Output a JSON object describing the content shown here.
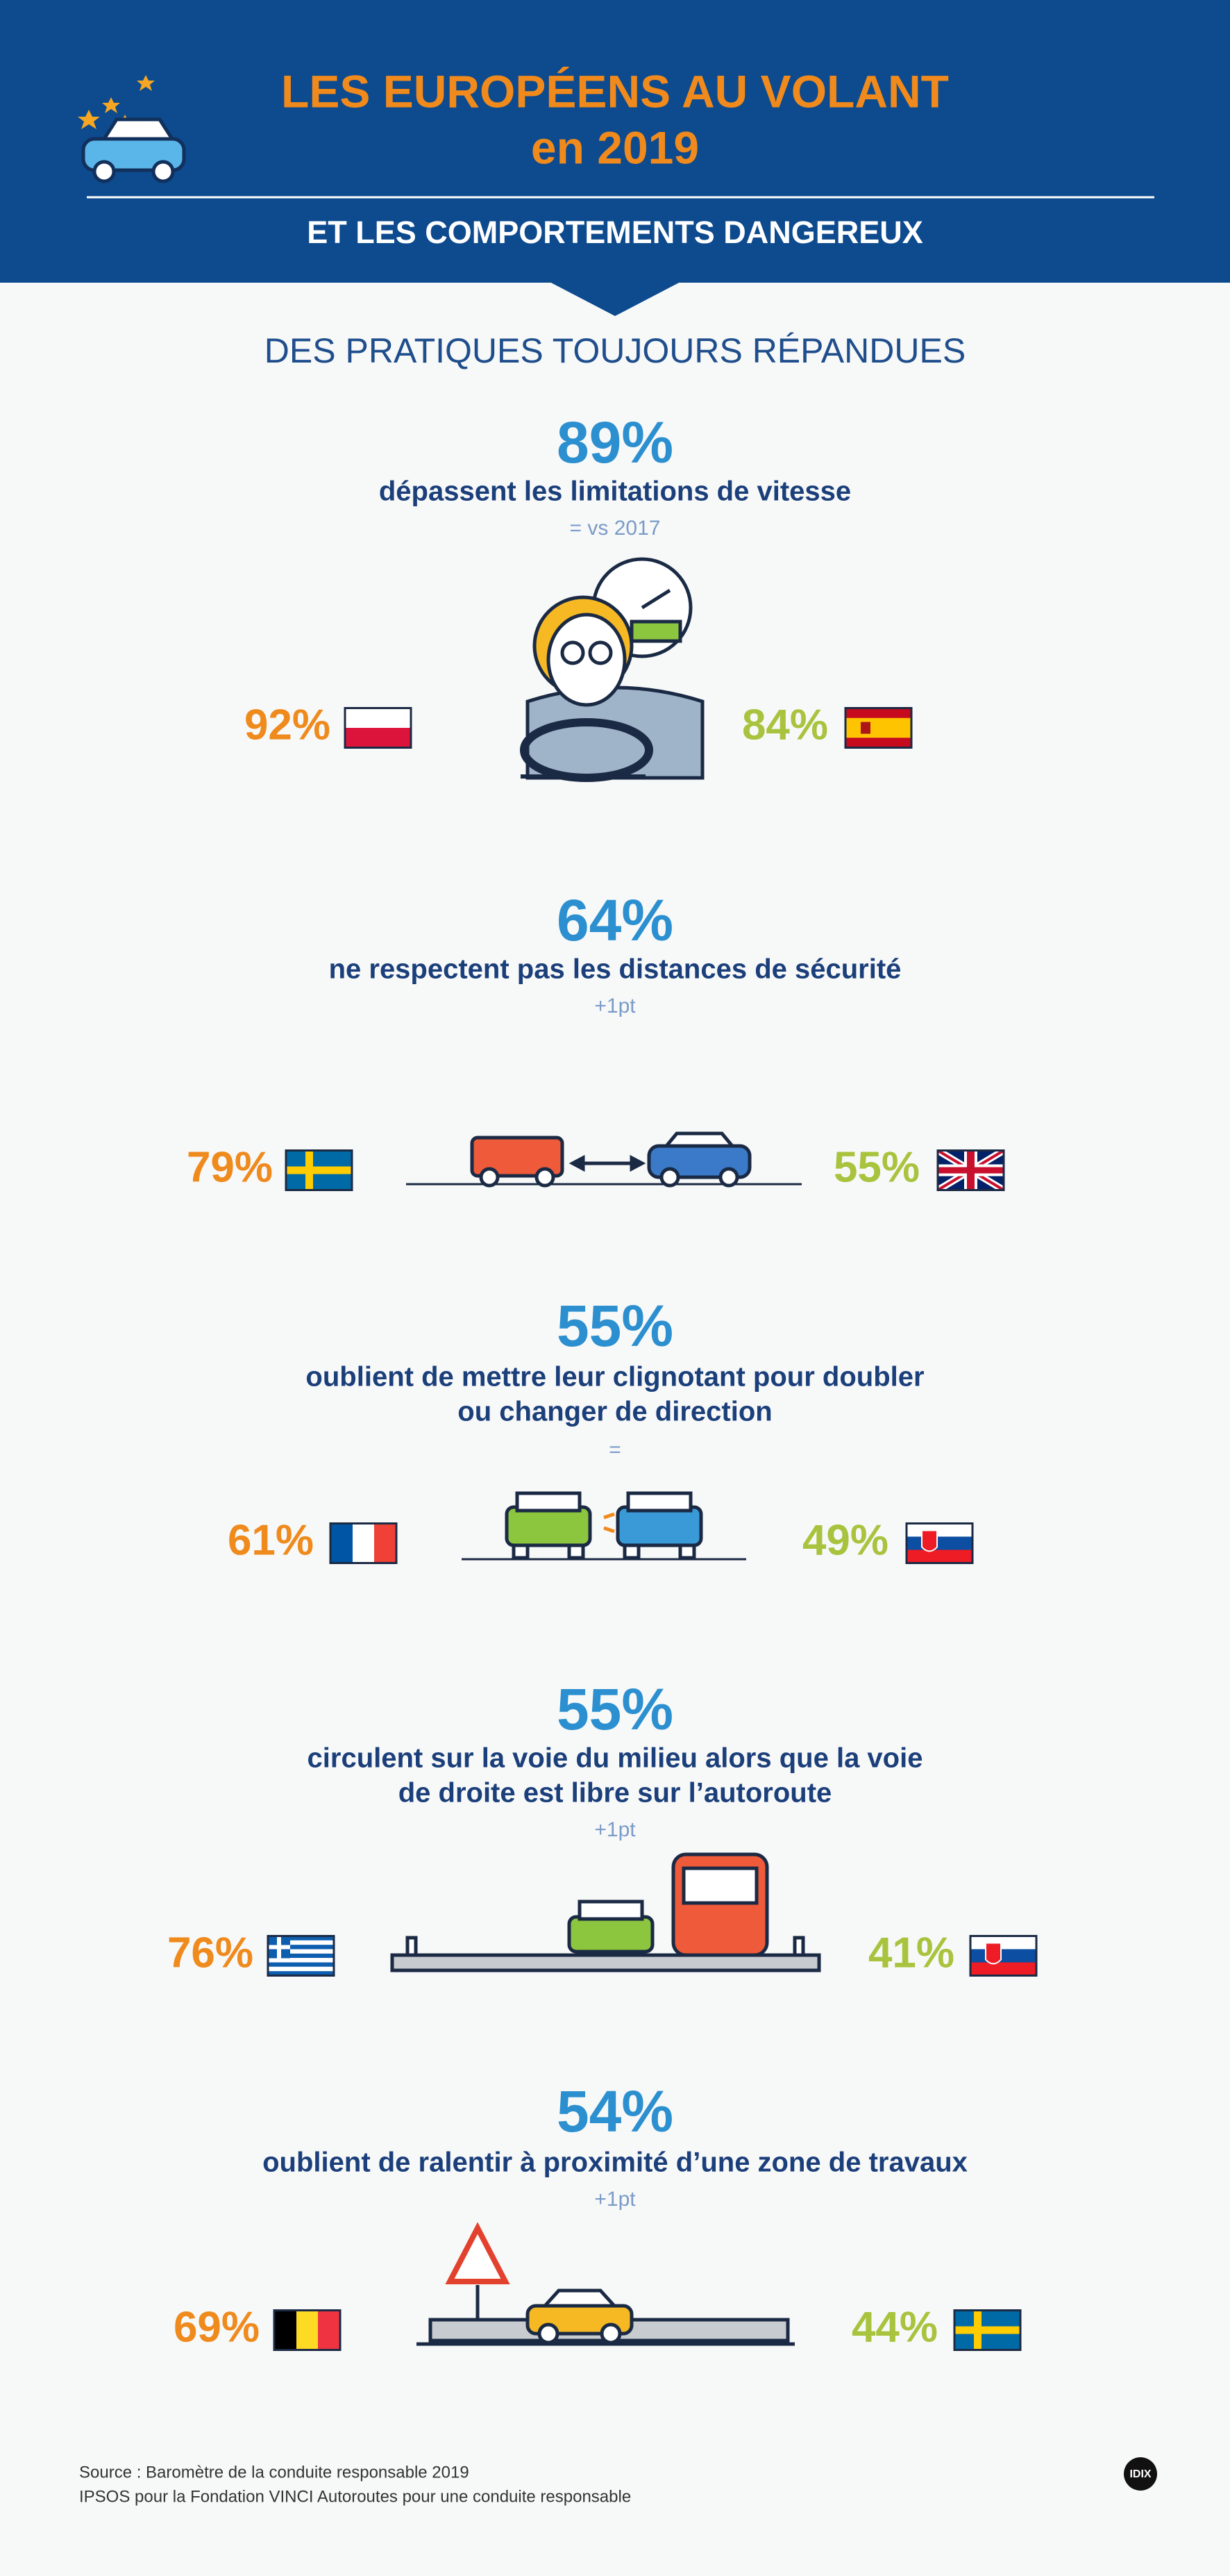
{
  "header": {
    "title_lines": [
      "LES EUROPÉENS AU VOLANT",
      "en 2019"
    ],
    "subtitle": "ET LES COMPORTEMENTS DANGEREUX"
  },
  "section_title": "DES PRATIQUES TOUJOURS RÉPANDUES",
  "items": [
    {
      "stat": "89%",
      "description": [
        "dépassent les limitations de vitesse"
      ],
      "change": "= vs 2017",
      "left": "92%",
      "right": "84%"
    },
    {
      "stat": "64%",
      "description": [
        "ne respectent pas les distances de sécurité"
      ],
      "change": "+1pt",
      "left": "79%",
      "right": "55%"
    },
    {
      "stat": "55%",
      "description": [
        "oublient de mettre leur clignotant pour doubler",
        "ou changer de direction"
      ],
      "change": "=",
      "left": "61%",
      "right": "49%"
    },
    {
      "stat": "55%",
      "description": [
        "circulent sur la voie du milieu alors que la voie",
        "de droite est libre sur l’autoroute"
      ],
      "change": "+1pt",
      "left": "76%",
      "right": "41%"
    },
    {
      "stat": "54%",
      "description": [
        "oublient de ralentir à proximité d’une zone de travaux"
      ],
      "change": "+1pt",
      "left": "69%",
      "right": "44%"
    }
  ],
  "source": [
    "Source : Baromètre de la conduite responsable 2019",
    "IPSOS pour la Fondation VINCI Autoroutes pour une conduite responsable"
  ],
  "logo": "IDIX"
}
